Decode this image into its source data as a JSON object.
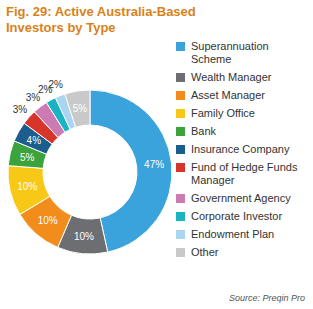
{
  "chart_data": {
    "type": "donut",
    "title": "Fig. 29: Active Australia-Based Investors by Type",
    "categories": [
      "Superannuation Scheme",
      "Wealth Manager",
      "Asset Manager",
      "Family Office",
      "Bank",
      "Insurance Company",
      "Fund of Hedge Funds Manager",
      "Government Agency",
      "Corporate Investor",
      "Endowment Plan",
      "Other"
    ],
    "values": [
      47,
      10,
      10,
      10,
      5,
      4,
      3,
      3,
      2,
      2,
      5
    ],
    "value_labels": [
      "47%",
      "10%",
      "10%",
      "10%",
      "5%",
      "4%",
      "3%",
      "3%",
      "2%",
      "2%",
      "5%"
    ],
    "colors": [
      "#3aa3dc",
      "#6d6e71",
      "#f28c1a",
      "#f7c815",
      "#3ba23c",
      "#1b5d8c",
      "#d8352a",
      "#cc7ab4",
      "#19b3c4",
      "#a9d5f0",
      "#c9c9c9"
    ],
    "data_labels": true,
    "legend": "right",
    "source": "Source: Preqin Pro"
  }
}
